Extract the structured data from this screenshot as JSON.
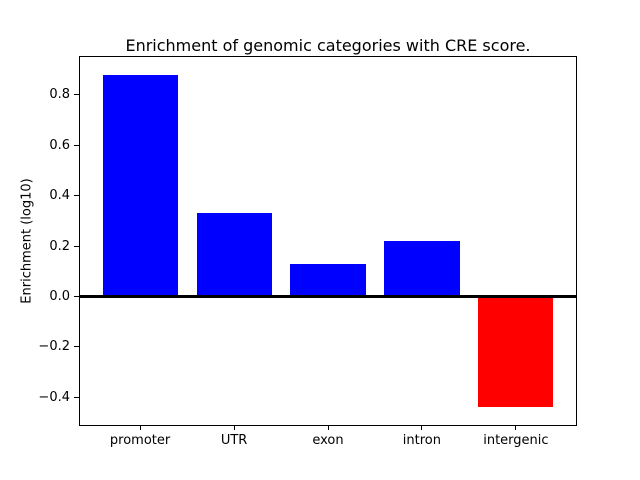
{
  "figure": {
    "title": "Enrichment of genomic categories with CRE score."
  },
  "chart_data": {
    "type": "bar",
    "title": "Enrichment of genomic categories with CRE score.",
    "xlabel": "",
    "ylabel": "Enrichment (log10)",
    "categories": [
      "promoter",
      "UTR",
      "exon",
      "intron",
      "intergenic"
    ],
    "values": [
      0.88,
      0.33,
      0.13,
      0.22,
      -0.44
    ],
    "bar_colors": [
      "#0000ff",
      "#0000ff",
      "#0000ff",
      "#0000ff",
      "#ff0000"
    ],
    "positive_color": "#0000ff",
    "negative_color": "#ff0000",
    "bar_width": 0.8,
    "xlim": [
      -0.64,
      4.64
    ],
    "ylim": [
      -0.51,
      0.95
    ],
    "yticks": [
      0.8,
      0.6,
      0.4,
      0.2,
      0.0,
      -0.2,
      -0.4
    ],
    "ytick_labels": [
      "0.8",
      "0.6",
      "0.4",
      "0.2",
      "0.0",
      "−0.2",
      "−0.4"
    ],
    "zero_line": {
      "y": 0.0,
      "color": "#000000",
      "thickness_px": 3
    },
    "grid": false,
    "legend": null,
    "plot_background": "#ffffff",
    "spine_color": "#000000"
  }
}
